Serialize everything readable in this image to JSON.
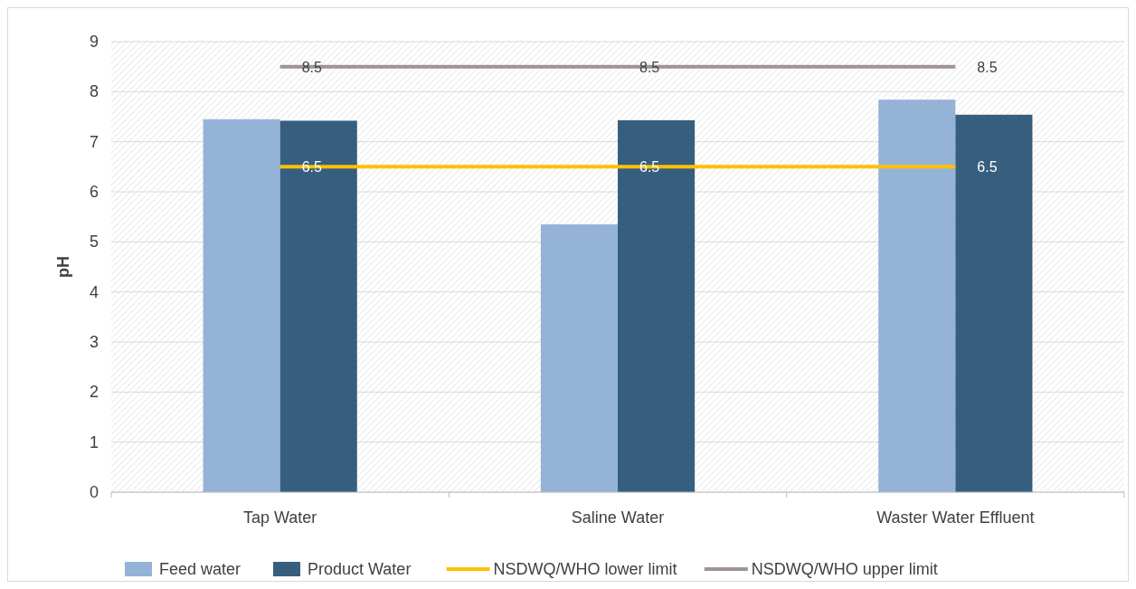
{
  "chart_data": {
    "type": "bar",
    "ylabel": "pH",
    "categories": [
      "Tap Water",
      "Saline Water",
      "Waster Water Effluent"
    ],
    "series": [
      {
        "name": "Feed water",
        "color": "#95b3d7",
        "values": [
          7.45,
          5.35,
          7.84
        ]
      },
      {
        "name": "Product Water",
        "color": "#365f7f",
        "values": [
          7.42,
          7.43,
          7.54
        ]
      },
      {
        "name": "NSDWQ/WHO lower limit",
        "type": "line",
        "color": "#ffc000",
        "values": [
          6.5,
          6.5,
          6.5
        ],
        "value_labels": [
          "6.5",
          "6.5",
          "6.5"
        ]
      },
      {
        "name": "NSDWQ/WHO upper limit",
        "type": "line",
        "color": "#9e9492",
        "values": [
          8.5,
          8.5,
          8.5
        ],
        "value_labels": [
          "8.5",
          "8.5",
          "8.5"
        ]
      }
    ],
    "ylim": [
      0,
      9
    ],
    "yticks": [
      0,
      1,
      2,
      3,
      4,
      5,
      6,
      7,
      8,
      9
    ],
    "grid": "y",
    "legend": "bottom",
    "marker": "none"
  }
}
